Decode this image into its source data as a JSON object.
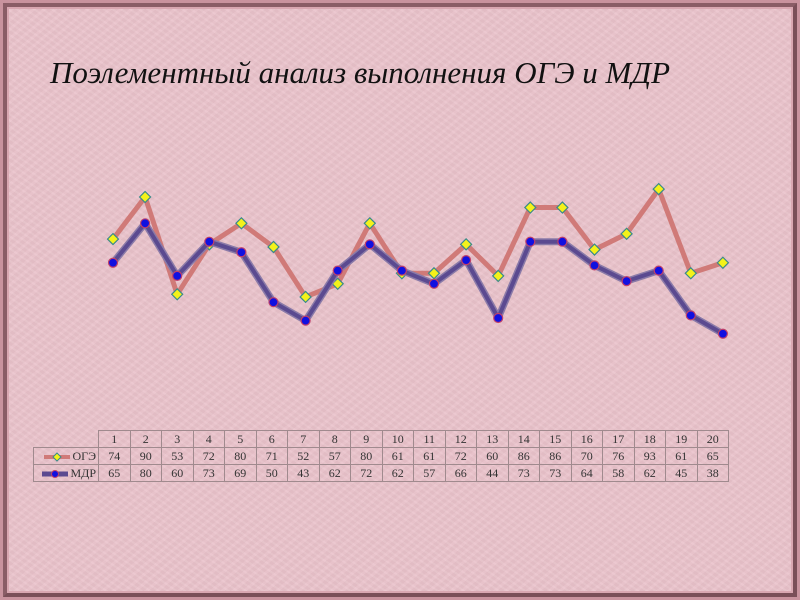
{
  "title": "Поэлементный анализ выполнения ОГЭ и МДР",
  "colors": {
    "background": "#eac3cb",
    "oge_line": "#d07a78",
    "oge_marker_fill": "#f4f21a",
    "oge_marker_stroke": "#3a8a8a",
    "mdr_line": "#5b4a90",
    "mdr_marker_fill": "#1010e0",
    "mdr_marker_stroke": "#c0406a"
  },
  "table": {
    "categories": [
      "1",
      "2",
      "3",
      "4",
      "5",
      "6",
      "7",
      "8",
      "9",
      "10",
      "11",
      "12",
      "13",
      "14",
      "15",
      "16",
      "17",
      "18",
      "19",
      "20"
    ],
    "rows": [
      {
        "label": "ОГЭ",
        "values": [
          "74",
          "90",
          "53",
          "72",
          "80",
          "71",
          "52",
          "57",
          "80",
          "61",
          "61",
          "72",
          "60",
          "86",
          "86",
          "70",
          "76",
          "93",
          "61",
          "65"
        ]
      },
      {
        "label": "МДР",
        "values": [
          "65",
          "80",
          "60",
          "73",
          "69",
          "50",
          "43",
          "62",
          "72",
          "62",
          "57",
          "66",
          "44",
          "73",
          "73",
          "64",
          "58",
          "62",
          "45",
          "38"
        ]
      }
    ]
  },
  "chart_data": {
    "type": "line",
    "title": "Поэлементный анализ выполнения ОГЭ и МДР",
    "categories": [
      "1",
      "2",
      "3",
      "4",
      "5",
      "6",
      "7",
      "8",
      "9",
      "10",
      "11",
      "12",
      "13",
      "14",
      "15",
      "16",
      "17",
      "18",
      "19",
      "20"
    ],
    "series": [
      {
        "name": "ОГЭ",
        "values": [
          74,
          90,
          53,
          72,
          80,
          71,
          52,
          57,
          80,
          61,
          61,
          72,
          60,
          86,
          86,
          70,
          76,
          93,
          61,
          65
        ]
      },
      {
        "name": "МДР",
        "values": [
          65,
          80,
          60,
          73,
          69,
          50,
          43,
          62,
          72,
          62,
          57,
          66,
          44,
          73,
          73,
          64,
          58,
          62,
          45,
          38
        ]
      }
    ],
    "xlabel": "",
    "ylabel": "",
    "grid": false,
    "legend_position": "data-table",
    "axes_visible": false
  }
}
